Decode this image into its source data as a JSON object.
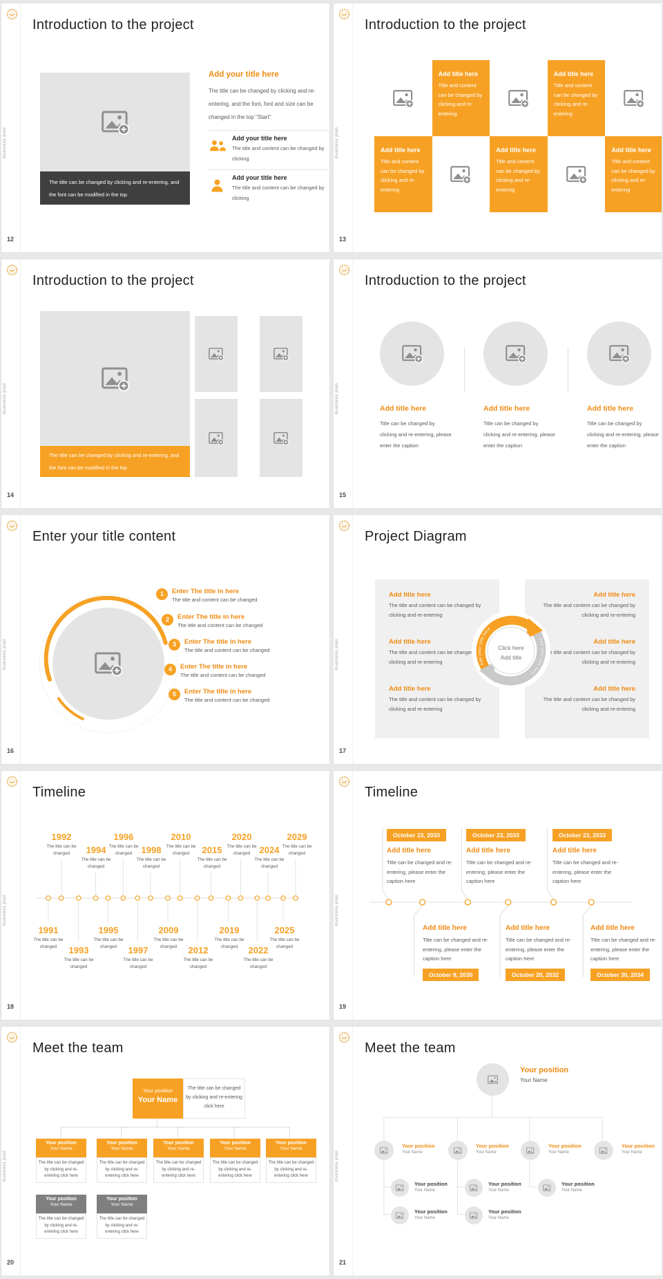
{
  "colors": {
    "accent": "#f7a124",
    "accent_text": "#ef8b13",
    "dark_bar": "#3f3f3f",
    "team_gray": "#7f7f7f",
    "body_text": "#595959",
    "title_text": "#262626"
  },
  "chrome": {
    "brand_vertical": "Business plan",
    "logo_icon": "flower-logo-icon"
  },
  "slides": {
    "s12": {
      "number": "12",
      "title": "Introduction to the project",
      "image_caption": "The title can be changed by clicking and re-entering, and the font can be modified in the top",
      "section_heading": "Add your title here",
      "section_paragraph": "The title can be changed by clicking and re-entering, and the font, font and size can be changed in the top \"Start\"",
      "items": [
        {
          "icon": "people-icon",
          "title": "Add your title here",
          "text": "The title and content can be changed by clicking"
        },
        {
          "icon": "person-icon",
          "title": "Add your title here",
          "text": "The title and content can be changed by clicking"
        }
      ]
    },
    "s13": {
      "number": "13",
      "title": "Introduction to the project",
      "cell": {
        "title": "Add title here",
        "text": "Title and content can be changed by clicking and re-entering"
      }
    },
    "s14": {
      "number": "14",
      "title": "Introduction to the project",
      "image_caption": "The title can be changed by clicking and re-entering, and the font can be modified in the top"
    },
    "s15": {
      "number": "15",
      "title": "Introduction to the project",
      "columns": [
        {
          "title": "Add title here",
          "text": "Title can be changed by clicking and re-entering, please enter the caption"
        },
        {
          "title": "Add title here",
          "text": "Title can be changed by clicking and re-entering, please enter the caption"
        },
        {
          "title": "Add title here",
          "text": "Title can be changed by clicking and re-entering, please enter the caption"
        }
      ]
    },
    "s16": {
      "number": "16",
      "title": "Enter your title content",
      "items": [
        {
          "num": "1",
          "title": "Enter The title in here",
          "text": "The title and content can be changed"
        },
        {
          "num": "2",
          "title": "Enter The title in here",
          "text": "The title and content can be changed"
        },
        {
          "num": "3",
          "title": "Enter The title in here",
          "text": "The title and content can be changed"
        },
        {
          "num": "4",
          "title": "Enter The title in here",
          "text": "The title and content can be changed"
        },
        {
          "num": "5",
          "title": "Enter The title in here",
          "text": "The title and content can be changed"
        }
      ]
    },
    "s17": {
      "number": "17",
      "title": "Project Diagram",
      "center_line1": "Click here",
      "center_line2": "Add title",
      "arc_label_left": "Add your title here",
      "arc_label_right": "Add your title here",
      "left_items": [
        {
          "title": "Add title here",
          "text": "The title and content can be changed by clicking and re-entering"
        },
        {
          "title": "Add title here",
          "text": "The title and content can be changed by clicking and re-entering"
        },
        {
          "title": "Add title here",
          "text": "The title and content can be changed by clicking and re-entering"
        }
      ],
      "right_items": [
        {
          "title": "Add title here",
          "text": "The title and content can be changed by clicking and re-entering"
        },
        {
          "title": "Add title here",
          "text": "The title and content can be changed by clicking and re-entering"
        },
        {
          "title": "Add title here",
          "text": "The title and content can be changed by clicking and re-entering"
        }
      ]
    },
    "s18": {
      "number": "18",
      "title": "Timeline",
      "item_caption": "The title can be changed",
      "top_years": [
        "1992",
        "1994",
        "1996",
        "1998",
        "2010",
        "2015",
        "2020",
        "2024",
        "2029"
      ],
      "bottom_years": [
        "1991",
        "1993",
        "1995",
        "1997",
        "2009",
        "2012",
        "2019",
        "2022",
        "2025"
      ]
    },
    "s19": {
      "number": "19",
      "title": "Timeline",
      "top_items": [
        {
          "date": "October 23, 2033",
          "title": "Add title here",
          "text": "Title can be changed and re-entering, please enter the caption here"
        },
        {
          "date": "October 23, 2033",
          "title": "Add title here",
          "text": "Title can be changed and re-entering, please enter the caption here"
        },
        {
          "date": "October 23, 2033",
          "title": "Add title here",
          "text": "Title can be changed and re-entering, please enter the caption here"
        }
      ],
      "bottom_items": [
        {
          "date": "October 8, 2030",
          "title": "Add title here",
          "text": "Title can be changed and re-entering, please enter the caption here"
        },
        {
          "date": "October 20, 2032",
          "title": "Add title here",
          "text": "Title can be changed and re-entering, please enter the caption here"
        },
        {
          "date": "October 30, 2034",
          "title": "Add title here",
          "text": "Title can be changed and re-entering, please enter the caption here"
        }
      ]
    },
    "s20": {
      "number": "20",
      "title": "Meet the team",
      "position_label": "Your position",
      "name_label": "Your Name",
      "caption": "The title can be changed by clicking and re-entering click here"
    },
    "s21": {
      "number": "21",
      "title": "Meet the team",
      "position_label": "Your position",
      "name_label": "Your Name"
    }
  }
}
